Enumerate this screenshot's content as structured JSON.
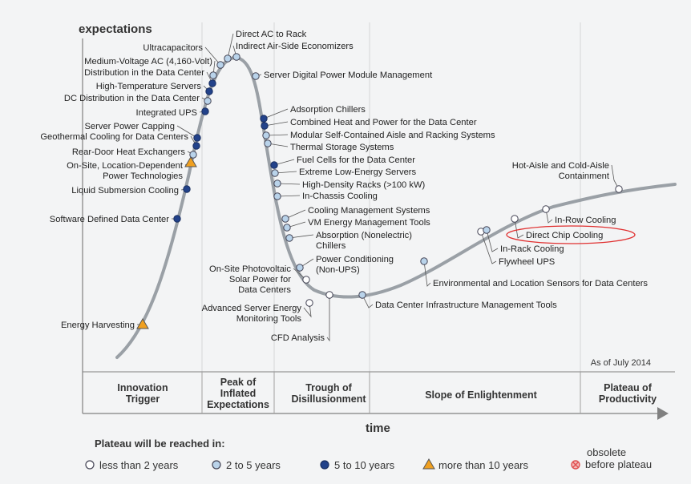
{
  "chart_data": {
    "type": "scatter",
    "title": "",
    "ylabel": "expectations",
    "xlabel": "time",
    "as_of": "As of July 2014",
    "phases": [
      "Innovation Trigger",
      "Peak of Inflated Expectations",
      "Trough of Disillusionment",
      "Slope of Enlightenment",
      "Plateau of Productivity"
    ],
    "legend": {
      "title": "Plateau will be reached in:",
      "items": [
        {
          "key": "lt2",
          "label": "less than 2 years"
        },
        {
          "key": "2to5",
          "label": "2 to 5 years"
        },
        {
          "key": "5to10",
          "label": "5 to 10 years"
        },
        {
          "key": "gt10",
          "label": "more than 10 years"
        },
        {
          "key": "obsolete",
          "label": "obsolete before plateau"
        }
      ]
    },
    "colors": {
      "lt2": "#ffffff",
      "2to5": "#b9d3ea",
      "5to10": "#22428a",
      "gt10": "#f0a020",
      "obsolete": "#e05050",
      "curve": "#9aa0a6",
      "background": "#f3f4f5",
      "highlight_ellipse": "#e03030"
    },
    "highlight": "Direct Chip Cooling",
    "technologies": [
      {
        "name": "Energy Harvesting",
        "category": "gt10"
      },
      {
        "name": "Software Defined Data Center",
        "category": "5to10"
      },
      {
        "name": "Liquid Submersion Cooling",
        "category": "5to10"
      },
      {
        "name": "On-Site, Location-Dependent Power Technologies",
        "category": "gt10"
      },
      {
        "name": "Rear-Door Heat Exchangers",
        "category": "2to5"
      },
      {
        "name": "Geothermal Cooling for Data Centers",
        "category": "5to10"
      },
      {
        "name": "Server Power Capping",
        "category": "5to10"
      },
      {
        "name": "Integrated UPS",
        "category": "5to10"
      },
      {
        "name": "DC Distribution in the Data Center",
        "category": "2to5"
      },
      {
        "name": "High-Temperature Servers",
        "category": "5to10"
      },
      {
        "name": "Distribution in the Data Center",
        "category": "5to10"
      },
      {
        "name": "Medium-Voltage AC (4,160-Volt)",
        "category": "2to5"
      },
      {
        "name": "Ultracapacitors",
        "category": "2to5"
      },
      {
        "name": "Direct AC to Rack",
        "category": "2to5"
      },
      {
        "name": "Indirect Air-Side Economizers",
        "category": "2to5"
      },
      {
        "name": "Server Digital Power Module Management",
        "category": "2to5"
      },
      {
        "name": "Adsorption Chillers",
        "category": "5to10"
      },
      {
        "name": "Combined Heat and Power for the Data Center",
        "category": "5to10"
      },
      {
        "name": "Modular Self-Contained Aisle and Racking Systems",
        "category": "2to5"
      },
      {
        "name": "Thermal Storage Systems",
        "category": "2to5"
      },
      {
        "name": "Fuel Cells for the Data Center",
        "category": "5to10"
      },
      {
        "name": "Extreme Low-Energy Servers",
        "category": "2to5"
      },
      {
        "name": "High-Density Racks (>100 kW)",
        "category": "2to5"
      },
      {
        "name": "In-Chassis Cooling",
        "category": "2to5"
      },
      {
        "name": "Cooling Management Systems",
        "category": "2to5"
      },
      {
        "name": "VM Energy Management Tools",
        "category": "2to5"
      },
      {
        "name": "Absorption (Nonelectric) Chillers",
        "category": "2to5"
      },
      {
        "name": "Power Conditioning (Non-UPS)",
        "category": "2to5"
      },
      {
        "name": "On-Site Photovoltaic Solar Power for Data Centers",
        "category": "lt2"
      },
      {
        "name": "Advanced Server Energy Monitoring Tools",
        "category": "lt2"
      },
      {
        "name": "CFD Analysis",
        "category": "lt2"
      },
      {
        "name": "Data Center Infrastructure Management Tools",
        "category": "2to5"
      },
      {
        "name": "Environmental and Location Sensors for Data Centers",
        "category": "2to5"
      },
      {
        "name": "Flywheel UPS",
        "category": "lt2"
      },
      {
        "name": "In-Rack Cooling",
        "category": "2to5"
      },
      {
        "name": "Direct Chip Cooling",
        "category": "lt2"
      },
      {
        "name": "In-Row Cooling",
        "category": "lt2"
      },
      {
        "name": "Hot-Aisle and Cold-Aisle Containment",
        "category": "lt2"
      }
    ]
  }
}
